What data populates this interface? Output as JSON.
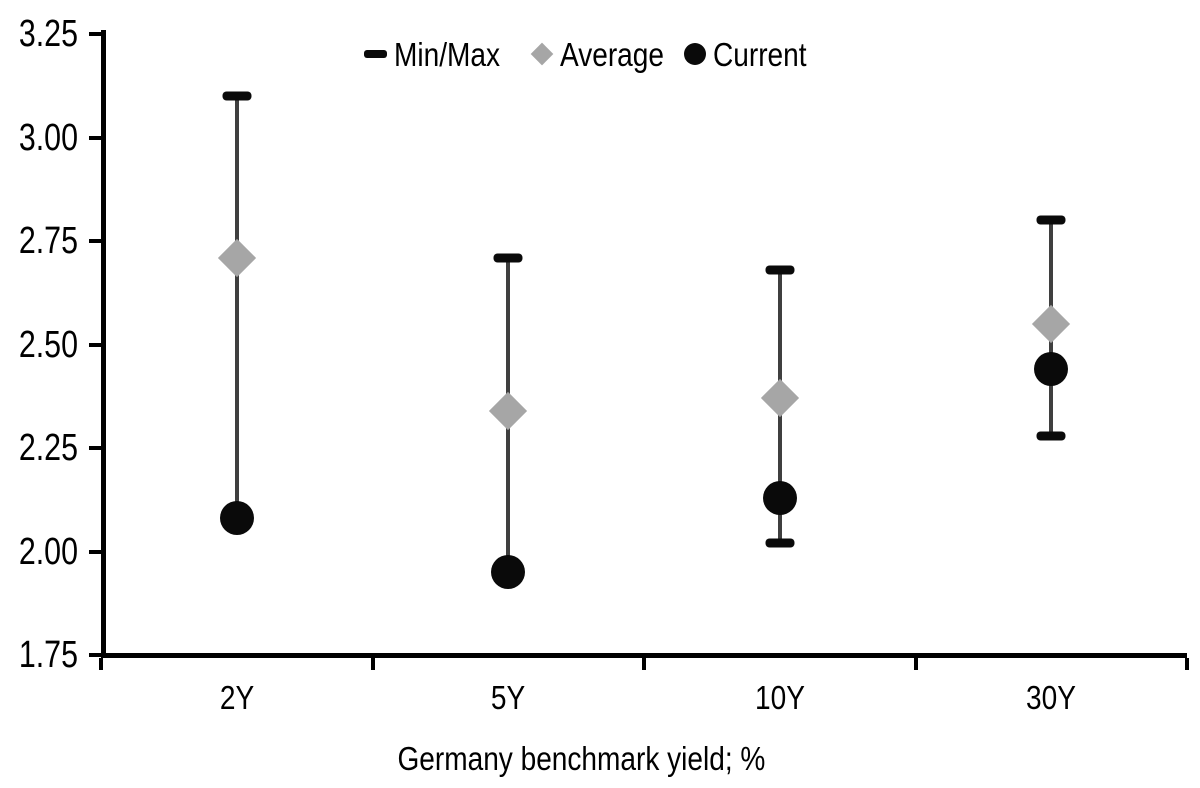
{
  "chart_data": {
    "type": "scatter",
    "subtype": "min-max-range-with-markers",
    "title": "",
    "xlabel": "Germany benchmark yield; %",
    "ylabel": "",
    "ylim": [
      1.75,
      3.25
    ],
    "ytick_step": 0.25,
    "yticks": [
      1.75,
      2.0,
      2.25,
      2.5,
      2.75,
      3.0,
      3.25
    ],
    "ytick_labels": [
      "1.75",
      "2.00",
      "2.25",
      "2.50",
      "2.75",
      "3.00",
      "3.25"
    ],
    "categories": [
      "2Y",
      "5Y",
      "10Y",
      "30Y"
    ],
    "series": [
      {
        "name": "Min/Max",
        "type": "range",
        "marker": "dash-caps",
        "min": [
          2.08,
          1.95,
          2.02,
          2.28
        ],
        "max": [
          3.1,
          2.71,
          2.68,
          2.8
        ]
      },
      {
        "name": "Average",
        "type": "point",
        "marker": "diamond",
        "values": [
          2.71,
          2.34,
          2.37,
          2.55
        ]
      },
      {
        "name": "Current",
        "type": "point",
        "marker": "circle",
        "values": [
          2.08,
          1.95,
          2.13,
          2.44
        ]
      }
    ],
    "legend": {
      "position": "top-center",
      "items": [
        "Min/Max",
        "Average",
        "Current"
      ]
    },
    "grid": false,
    "colors": {
      "background": "#ffffff",
      "axis": "#000000",
      "text": "#000000",
      "range_line": "#3f3f3f",
      "range_cap": "#0a0a0a",
      "average_fill": "#a6a6a6",
      "current_fill": "#0a0a0a"
    }
  }
}
